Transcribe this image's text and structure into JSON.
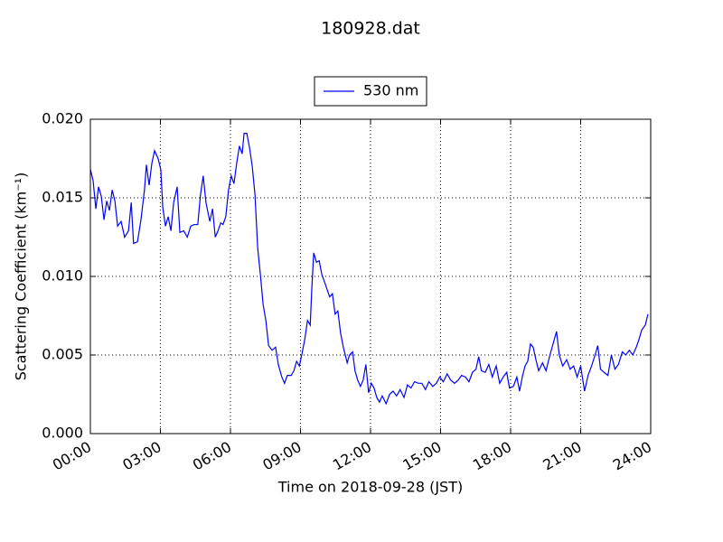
{
  "chart_data": {
    "type": "line",
    "title": "180928.dat",
    "xlabel": "Time on 2018-09-28 (JST)",
    "ylabel": "Scattering Coefficient (km⁻¹)",
    "legend": "upper center",
    "grid": true,
    "xlim": [
      "00:00",
      "24:00"
    ],
    "xticks": [
      "00:00",
      "03:00",
      "06:00",
      "09:00",
      "12:00",
      "15:00",
      "18:00",
      "21:00",
      "24:00"
    ],
    "ylim": [
      0,
      0.02
    ],
    "yticks": [
      {
        "value": 0,
        "label": "0.000"
      },
      {
        "value": 0.005,
        "label": "0.005"
      },
      {
        "value": 0.01,
        "label": "0.010"
      },
      {
        "value": 0.015,
        "label": "0.015"
      },
      {
        "value": 0.02,
        "label": "0.020"
      }
    ],
    "x": [
      "00:00",
      "00:07",
      "00:14",
      "00:21",
      "00:28",
      "00:35",
      "00:42",
      "00:49",
      "00:56",
      "01:03",
      "01:10",
      "01:19",
      "01:28",
      "01:38",
      "01:45",
      "01:51",
      "02:01",
      "02:10",
      "02:19",
      "02:24",
      "02:31",
      "02:38",
      "02:45",
      "02:54",
      "03:01",
      "03:06",
      "03:13",
      "03:20",
      "03:27",
      "03:34",
      "03:43",
      "03:50",
      "04:00",
      "04:09",
      "04:18",
      "04:27",
      "04:36",
      "04:43",
      "04:50",
      "04:57",
      "05:07",
      "05:14",
      "05:21",
      "05:28",
      "05:35",
      "05:41",
      "05:48",
      "05:55",
      "06:02",
      "06:09",
      "06:16",
      "06:23",
      "06:30",
      "06:35",
      "06:42",
      "06:49",
      "06:56",
      "07:03",
      "07:10",
      "07:17",
      "07:24",
      "07:31",
      "07:38",
      "07:47",
      "07:56",
      "08:03",
      "08:12",
      "08:19",
      "08:26",
      "08:36",
      "08:43",
      "08:50",
      "08:57",
      "09:04",
      "09:11",
      "09:18",
      "09:25",
      "09:29",
      "09:34",
      "09:41",
      "09:48",
      "09:55",
      "10:01",
      "10:08",
      "10:15",
      "10:22",
      "10:29",
      "10:36",
      "10:43",
      "10:50",
      "11:00",
      "11:06",
      "11:14",
      "11:20",
      "11:27",
      "11:34",
      "11:41",
      "11:48",
      "11:55",
      "12:02",
      "12:09",
      "12:16",
      "12:23",
      "12:30",
      "12:40",
      "12:49",
      "12:58",
      "13:07",
      "13:16",
      "13:26",
      "13:35",
      "13:44",
      "13:53",
      "14:03",
      "14:12",
      "14:21",
      "14:30",
      "14:40",
      "14:49",
      "14:58",
      "15:07",
      "15:17",
      "15:26",
      "15:36",
      "15:45",
      "15:54",
      "16:04",
      "16:13",
      "16:22",
      "16:31",
      "16:38",
      "16:45",
      "16:55",
      "17:04",
      "17:13",
      "17:23",
      "17:32",
      "17:41",
      "17:50",
      "17:57",
      "18:07",
      "18:16",
      "18:23",
      "18:30",
      "18:37",
      "18:44",
      "18:51",
      "18:58",
      "19:05",
      "19:12",
      "19:22",
      "19:31",
      "19:40",
      "19:49",
      "19:58",
      "20:05",
      "20:14",
      "20:24",
      "20:33",
      "20:42",
      "20:51",
      "21:00",
      "21:10",
      "21:19",
      "21:28",
      "21:37",
      "21:44",
      "21:51",
      "22:00",
      "22:10",
      "22:19",
      "22:28",
      "22:37",
      "22:47",
      "22:56",
      "23:05",
      "23:14",
      "23:23",
      "23:30",
      "23:37",
      "23:46",
      "23:53"
    ],
    "series": [
      {
        "name": "530 nm",
        "color": "#0000ff",
        "values": [
          0.0168,
          0.0161,
          0.0143,
          0.0157,
          0.0151,
          0.0136,
          0.0148,
          0.0142,
          0.0155,
          0.0148,
          0.0132,
          0.0135,
          0.0125,
          0.0129,
          0.0147,
          0.0121,
          0.0122,
          0.0136,
          0.0155,
          0.0171,
          0.0158,
          0.0172,
          0.018,
          0.0175,
          0.0168,
          0.0144,
          0.0132,
          0.0138,
          0.0129,
          0.0147,
          0.0157,
          0.0128,
          0.0129,
          0.0125,
          0.0132,
          0.0133,
          0.0133,
          0.0152,
          0.0164,
          0.0147,
          0.0135,
          0.0143,
          0.0125,
          0.0129,
          0.0134,
          0.0133,
          0.0138,
          0.0155,
          0.0164,
          0.0159,
          0.0172,
          0.0183,
          0.0178,
          0.0191,
          0.0191,
          0.0182,
          0.017,
          0.0152,
          0.0118,
          0.0101,
          0.0082,
          0.0072,
          0.0056,
          0.0053,
          0.0055,
          0.0044,
          0.0036,
          0.0032,
          0.0037,
          0.0037,
          0.004,
          0.0046,
          0.0043,
          0.0051,
          0.006,
          0.0072,
          0.0069,
          0.0092,
          0.0115,
          0.0109,
          0.011,
          0.0101,
          0.0097,
          0.0092,
          0.0087,
          0.0089,
          0.0076,
          0.0078,
          0.0064,
          0.0055,
          0.0045,
          0.005,
          0.0052,
          0.004,
          0.0034,
          0.003,
          0.0034,
          0.0044,
          0.0026,
          0.0032,
          0.0029,
          0.0023,
          0.002,
          0.0024,
          0.0019,
          0.0025,
          0.0027,
          0.0024,
          0.0028,
          0.0023,
          0.0031,
          0.0029,
          0.0033,
          0.0032,
          0.0032,
          0.0028,
          0.0033,
          0.003,
          0.0032,
          0.0036,
          0.0033,
          0.0038,
          0.0034,
          0.0032,
          0.0034,
          0.0037,
          0.0036,
          0.0033,
          0.0039,
          0.0041,
          0.0049,
          0.004,
          0.0039,
          0.0044,
          0.0036,
          0.0043,
          0.0032,
          0.0036,
          0.0039,
          0.0029,
          0.003,
          0.0036,
          0.0027,
          0.0036,
          0.0043,
          0.0046,
          0.0057,
          0.0055,
          0.0047,
          0.004,
          0.0045,
          0.004,
          0.0049,
          0.0057,
          0.0065,
          0.005,
          0.0043,
          0.0047,
          0.0041,
          0.0043,
          0.0036,
          0.0043,
          0.0027,
          0.0037,
          0.0043,
          0.005,
          0.0056,
          0.0041,
          0.0039,
          0.0037,
          0.005,
          0.0041,
          0.0044,
          0.0052,
          0.005,
          0.0053,
          0.005,
          0.0055,
          0.006,
          0.0066,
          0.0069,
          0.0076
        ]
      }
    ]
  }
}
